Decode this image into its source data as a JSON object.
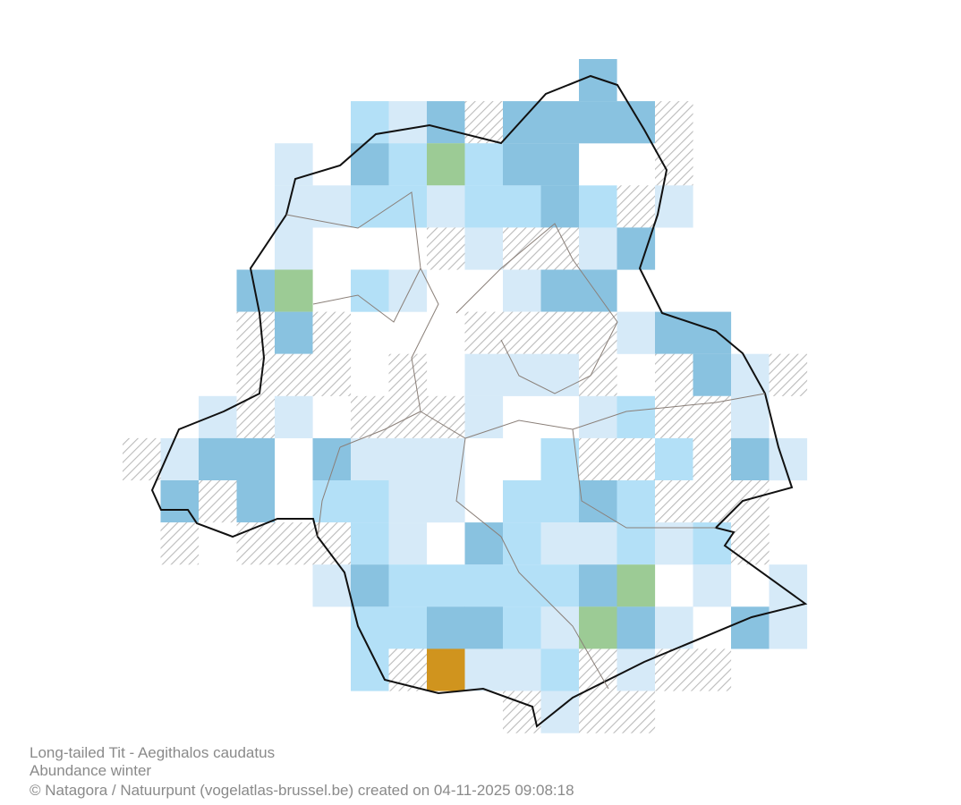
{
  "caption": {
    "species": "Long-tailed Tit - Aegithalos caudatus",
    "map_type": "Abundance winter",
    "credit": "© Natagora / Natuurpunt (vogelatlas-brussel.be) created on 04-11-2025 09:08:18"
  }
}
